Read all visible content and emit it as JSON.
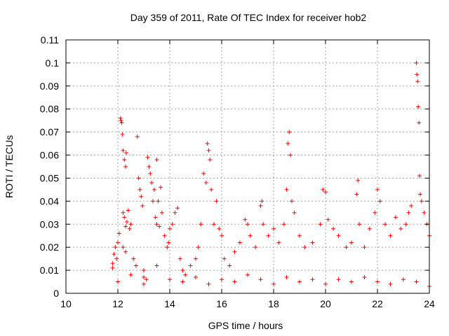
{
  "chart_data": {
    "type": "scatter",
    "title": "Day 359 of 2011, Rate Of TEC Index for receiver hob2",
    "xlabel": "GPS time / hours",
    "ylabel": "ROTI / TECUs",
    "xlim": [
      10,
      24
    ],
    "ylim": [
      0,
      0.11
    ],
    "x_ticks": [
      "10",
      "12",
      "14",
      "16",
      "18",
      "20",
      "22",
      "24"
    ],
    "y_ticks": [
      "0",
      "0.01",
      "0.02",
      "0.03",
      "0.04",
      "0.05",
      "0.06",
      "0.07",
      "0.08",
      "0.09",
      "0.1",
      "0.11"
    ],
    "grid": true,
    "marker": "+",
    "marker_color": "#ff0000",
    "series": [
      {
        "points": [
          [
            11.8,
            0.011
          ],
          [
            11.8,
            0.013
          ],
          [
            11.85,
            0.017
          ],
          [
            11.9,
            0.02
          ],
          [
            11.95,
            0.015
          ],
          [
            12.0,
            0.022
          ],
          [
            12.05,
            0.026
          ],
          [
            12.1,
            0.076
          ],
          [
            12.12,
            0.075
          ],
          [
            12.15,
            0.074
          ],
          [
            12.18,
            0.069
          ],
          [
            12.2,
            0.062
          ],
          [
            12.25,
            0.058
          ],
          [
            12.3,
            0.055
          ],
          [
            12.32,
            0.061
          ],
          [
            12.2,
            0.035
          ],
          [
            12.25,
            0.033
          ],
          [
            12.3,
            0.029
          ],
          [
            12.35,
            0.031
          ],
          [
            12.4,
            0.036
          ],
          [
            12.45,
            0.028
          ],
          [
            12.5,
            0.03
          ],
          [
            12.2,
            0.02
          ],
          [
            12.3,
            0.018
          ],
          [
            12.6,
            0.015
          ],
          [
            12.7,
            0.012
          ],
          [
            12.75,
            0.068
          ],
          [
            12.8,
            0.05
          ],
          [
            12.85,
            0.045
          ],
          [
            12.9,
            0.042
          ],
          [
            12.95,
            0.038
          ],
          [
            13.0,
            0.01
          ],
          [
            13.0,
            0.007
          ],
          [
            13.1,
            0.006
          ],
          [
            13.15,
            0.059
          ],
          [
            13.2,
            0.055
          ],
          [
            13.25,
            0.052
          ],
          [
            13.3,
            0.048
          ],
          [
            13.35,
            0.04
          ],
          [
            13.4,
            0.045
          ],
          [
            13.45,
            0.033
          ],
          [
            13.5,
            0.03
          ],
          [
            13.5,
            0.058
          ],
          [
            13.55,
            0.04
          ],
          [
            13.6,
            0.029
          ],
          [
            13.65,
            0.046
          ],
          [
            13.7,
            0.035
          ],
          [
            13.8,
            0.025
          ],
          [
            13.9,
            0.02
          ],
          [
            13.95,
            0.022
          ],
          [
            14.0,
            0.028
          ],
          [
            14.1,
            0.03
          ],
          [
            14.2,
            0.035
          ],
          [
            14.3,
            0.037
          ],
          [
            14.4,
            0.015
          ],
          [
            14.5,
            0.01
          ],
          [
            14.6,
            0.008
          ],
          [
            14.8,
            0.012
          ],
          [
            15.0,
            0.015
          ],
          [
            15.1,
            0.02
          ],
          [
            15.2,
            0.03
          ],
          [
            15.3,
            0.052
          ],
          [
            15.4,
            0.048
          ],
          [
            15.45,
            0.065
          ],
          [
            15.5,
            0.062
          ],
          [
            15.55,
            0.058
          ],
          [
            15.6,
            0.045
          ],
          [
            15.7,
            0.03
          ],
          [
            15.8,
            0.04
          ],
          [
            15.9,
            0.028
          ],
          [
            16.0,
            0.025
          ],
          [
            16.1,
            0.015
          ],
          [
            16.3,
            0.012
          ],
          [
            16.5,
            0.018
          ],
          [
            16.7,
            0.022
          ],
          [
            16.9,
            0.032
          ],
          [
            17.0,
            0.03
          ],
          [
            17.1,
            0.025
          ],
          [
            17.3,
            0.02
          ],
          [
            17.5,
            0.038
          ],
          [
            17.55,
            0.04
          ],
          [
            17.6,
            0.03
          ],
          [
            17.8,
            0.025
          ],
          [
            18.0,
            0.028
          ],
          [
            18.2,
            0.022
          ],
          [
            18.4,
            0.03
          ],
          [
            18.5,
            0.045
          ],
          [
            18.55,
            0.065
          ],
          [
            18.6,
            0.07
          ],
          [
            18.65,
            0.06
          ],
          [
            18.7,
            0.04
          ],
          [
            18.8,
            0.035
          ],
          [
            19.0,
            0.025
          ],
          [
            19.2,
            0.02
          ],
          [
            19.5,
            0.022
          ],
          [
            19.8,
            0.03
          ],
          [
            19.9,
            0.045
          ],
          [
            20.0,
            0.044
          ],
          [
            20.1,
            0.032
          ],
          [
            20.3,
            0.028
          ],
          [
            20.5,
            0.025
          ],
          [
            20.8,
            0.02
          ],
          [
            21.0,
            0.022
          ],
          [
            21.2,
            0.043
          ],
          [
            21.25,
            0.049
          ],
          [
            21.3,
            0.03
          ],
          [
            21.5,
            0.02
          ],
          [
            21.7,
            0.028
          ],
          [
            21.9,
            0.035
          ],
          [
            22.0,
            0.045
          ],
          [
            22.1,
            0.04
          ],
          [
            22.3,
            0.03
          ],
          [
            22.5,
            0.025
          ],
          [
            22.7,
            0.033
          ],
          [
            22.9,
            0.028
          ],
          [
            23.1,
            0.03
          ],
          [
            23.2,
            0.035
          ],
          [
            23.3,
            0.038
          ],
          [
            23.5,
            0.1
          ],
          [
            23.52,
            0.095
          ],
          [
            23.55,
            0.092
          ],
          [
            23.57,
            0.081
          ],
          [
            23.6,
            0.074
          ],
          [
            23.62,
            0.051
          ],
          [
            23.65,
            0.043
          ],
          [
            23.7,
            0.04
          ],
          [
            23.8,
            0.035
          ],
          [
            23.9,
            0.03
          ],
          [
            24.0,
            0.025
          ],
          [
            12.0,
            0.005
          ],
          [
            12.5,
            0.008
          ],
          [
            13.0,
            0.004
          ],
          [
            13.5,
            0.012
          ],
          [
            14.0,
            0.006
          ],
          [
            14.5,
            0.005
          ],
          [
            15.0,
            0.007
          ],
          [
            15.5,
            0.004
          ],
          [
            16.0,
            0.006
          ],
          [
            16.5,
            0.005
          ],
          [
            17.0,
            0.008
          ],
          [
            17.5,
            0.006
          ],
          [
            18.0,
            0.004
          ],
          [
            18.5,
            0.007
          ],
          [
            19.0,
            0.005
          ],
          [
            19.5,
            0.006
          ],
          [
            20.0,
            0.004
          ],
          [
            20.5,
            0.006
          ],
          [
            21.0,
            0.005
          ],
          [
            21.5,
            0.007
          ],
          [
            22.0,
            0.005
          ],
          [
            22.5,
            0.004
          ],
          [
            23.0,
            0.006
          ],
          [
            23.5,
            0.005
          ],
          [
            24.0,
            0.003
          ]
        ]
      }
    ]
  }
}
